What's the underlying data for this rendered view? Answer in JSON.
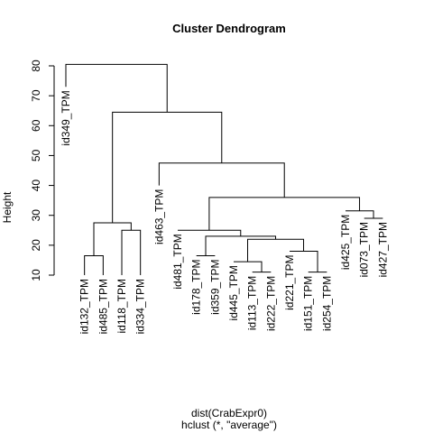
{
  "chart_data": {
    "type": "dendrogram",
    "title": "Cluster Dendrogram",
    "ylabel": "Height",
    "xlabel": "dist(CrabExpr0)",
    "sublabel": "hclust (*, \"average\")",
    "ylim": [
      10,
      80
    ],
    "yticks": [
      10,
      20,
      30,
      40,
      50,
      60,
      70,
      80
    ],
    "leaf_bottom": 10,
    "leaves": [
      {
        "label": "id349_TPM",
        "height": 73
      },
      {
        "label": "id132_TPM",
        "height": 10
      },
      {
        "label": "id485_TPM",
        "height": 10
      },
      {
        "label": "id118_TPM",
        "height": 10
      },
      {
        "label": "id334_TPM",
        "height": 10
      },
      {
        "label": "id463_TPM",
        "height": 40
      },
      {
        "label": "id481_TPM",
        "height": 25
      },
      {
        "label": "id178_TPM",
        "height": 16.5
      },
      {
        "label": "id359_TPM",
        "height": 16.5
      },
      {
        "label": "id445_TPM",
        "height": 14.5
      },
      {
        "label": "id113_TPM",
        "height": 11
      },
      {
        "label": "id222_TPM",
        "height": 11
      },
      {
        "label": "id221_TPM",
        "height": 18
      },
      {
        "label": "id151_TPM",
        "height": 11
      },
      {
        "label": "id254_TPM",
        "height": 11
      },
      {
        "label": "id425_TPM",
        "height": 31.5
      },
      {
        "label": "id073_TPM",
        "height": 29
      },
      {
        "label": "id427_TPM",
        "height": 29
      }
    ],
    "merges": [
      {
        "left": [
          "leaf",
          1
        ],
        "right": [
          "leaf",
          2
        ],
        "height": 16.5
      },
      {
        "left": [
          "leaf",
          3
        ],
        "right": [
          "leaf",
          4
        ],
        "height": 25
      },
      {
        "left": [
          "node",
          0
        ],
        "right": [
          "node",
          1
        ],
        "height": 27.5
      },
      {
        "left": [
          "leaf",
          7
        ],
        "right": [
          "leaf",
          8
        ],
        "height": 16.5
      },
      {
        "left": [
          "leaf",
          10
        ],
        "right": [
          "leaf",
          11
        ],
        "height": 11
      },
      {
        "left": [
          "leaf",
          9
        ],
        "right": [
          "node",
          4
        ],
        "height": 14.5
      },
      {
        "left": [
          "leaf",
          13
        ],
        "right": [
          "leaf",
          14
        ],
        "height": 11
      },
      {
        "left": [
          "leaf",
          12
        ],
        "right": [
          "node",
          6
        ],
        "height": 18
      },
      {
        "left": [
          "node",
          5
        ],
        "right": [
          "node",
          7
        ],
        "height": 22
      },
      {
        "left": [
          "node",
          3
        ],
        "right": [
          "node",
          8
        ],
        "height": 23
      },
      {
        "left": [
          "leaf",
          6
        ],
        "right": [
          "node",
          9
        ],
        "height": 25
      },
      {
        "left": [
          "leaf",
          16
        ],
        "right": [
          "leaf",
          17
        ],
        "height": 29
      },
      {
        "left": [
          "leaf",
          15
        ],
        "right": [
          "node",
          11
        ],
        "height": 31.5
      },
      {
        "left": [
          "node",
          10
        ],
        "right": [
          "node",
          12
        ],
        "height": 36
      },
      {
        "left": [
          "leaf",
          5
        ],
        "right": [
          "node",
          13
        ],
        "height": 47.5
      },
      {
        "left": [
          "node",
          2
        ],
        "right": [
          "node",
          14
        ],
        "height": 64.5
      },
      {
        "left": [
          "leaf",
          0
        ],
        "right": [
          "node",
          15
        ],
        "height": 80.5
      }
    ]
  }
}
